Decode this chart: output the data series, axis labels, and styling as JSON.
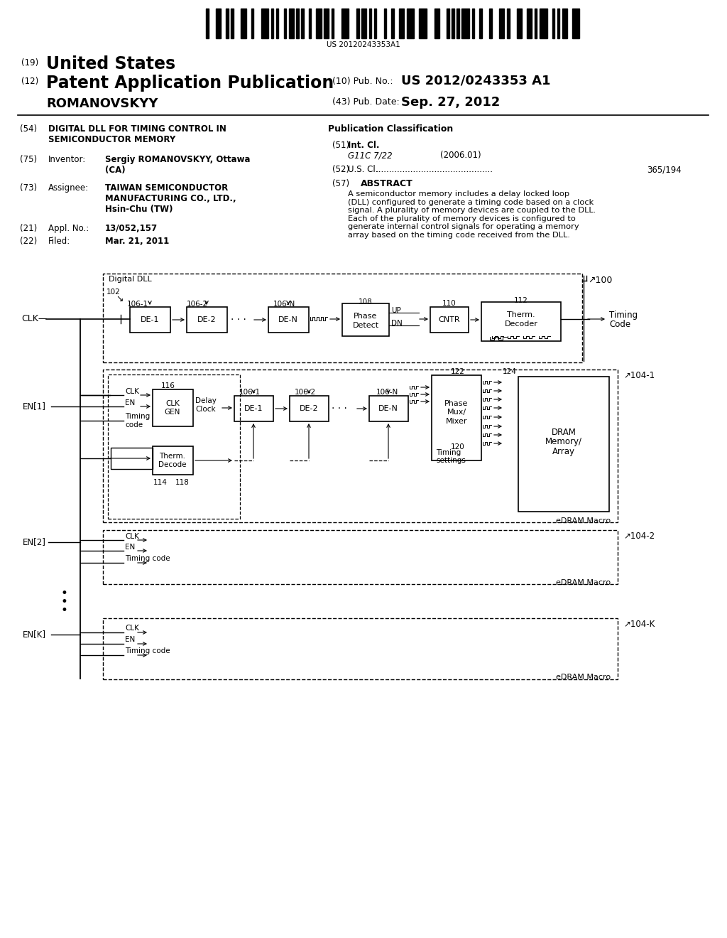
{
  "bg_color": "#ffffff",
  "barcode_number": "US 20120243353A1",
  "field19": "(19)",
  "title_patent": "United States",
  "field12": "(12)",
  "subtitle_patent": "Patent Application Publication",
  "inventor_label": "ROMANOVSKYY",
  "pub_no_label": "(10) Pub. No.:",
  "pub_no_value": "US 2012/0243353 A1",
  "pub_date_label": "(43) Pub. Date:",
  "pub_date_value": "Sep. 27, 2012",
  "field54_label": "(54)",
  "field54_title": "DIGITAL DLL FOR TIMING CONTROL IN\nSEMICONDUCTOR MEMORY",
  "field75_label": "(75)",
  "field75_name": "Inventor:",
  "field75_value": "Sergiy ROMANOVSKYY, Ottawa\n(CA)",
  "field73_label": "(73)",
  "field73_name": "Assignee:",
  "field73_value": "TAIWAN SEMICONDUCTOR\nMANUFACTURING CO., LTD.,\nHsin-Chu (TW)",
  "field21_label": "(21)",
  "field21_name": "Appl. No.:",
  "field21_value": "13/052,157",
  "field22_label": "(22)",
  "field22_name": "Filed:",
  "field22_value": "Mar. 21, 2011",
  "pub_class_title": "Publication Classification",
  "field51_label": "(51)",
  "field51_name": "Int. Cl.",
  "field51_class": "G11C 7/22",
  "field51_year": "(2006.01)",
  "field52_label": "(52)",
  "field52_name": "U.S. Cl.",
  "field52_dots": "............................................",
  "field52_value": "365/194",
  "field57_label": "(57)",
  "field57_name": "ABSTRACT",
  "field57_text": "A semiconductor memory includes a delay locked loop\n(DLL) configured to generate a timing code based on a clock\nsignal. A plurality of memory devices are coupled to the DLL.\nEach of the plurality of memory devices is configured to\ngenerate internal control signals for operating a memory\narray based on the timing code received from the DLL."
}
